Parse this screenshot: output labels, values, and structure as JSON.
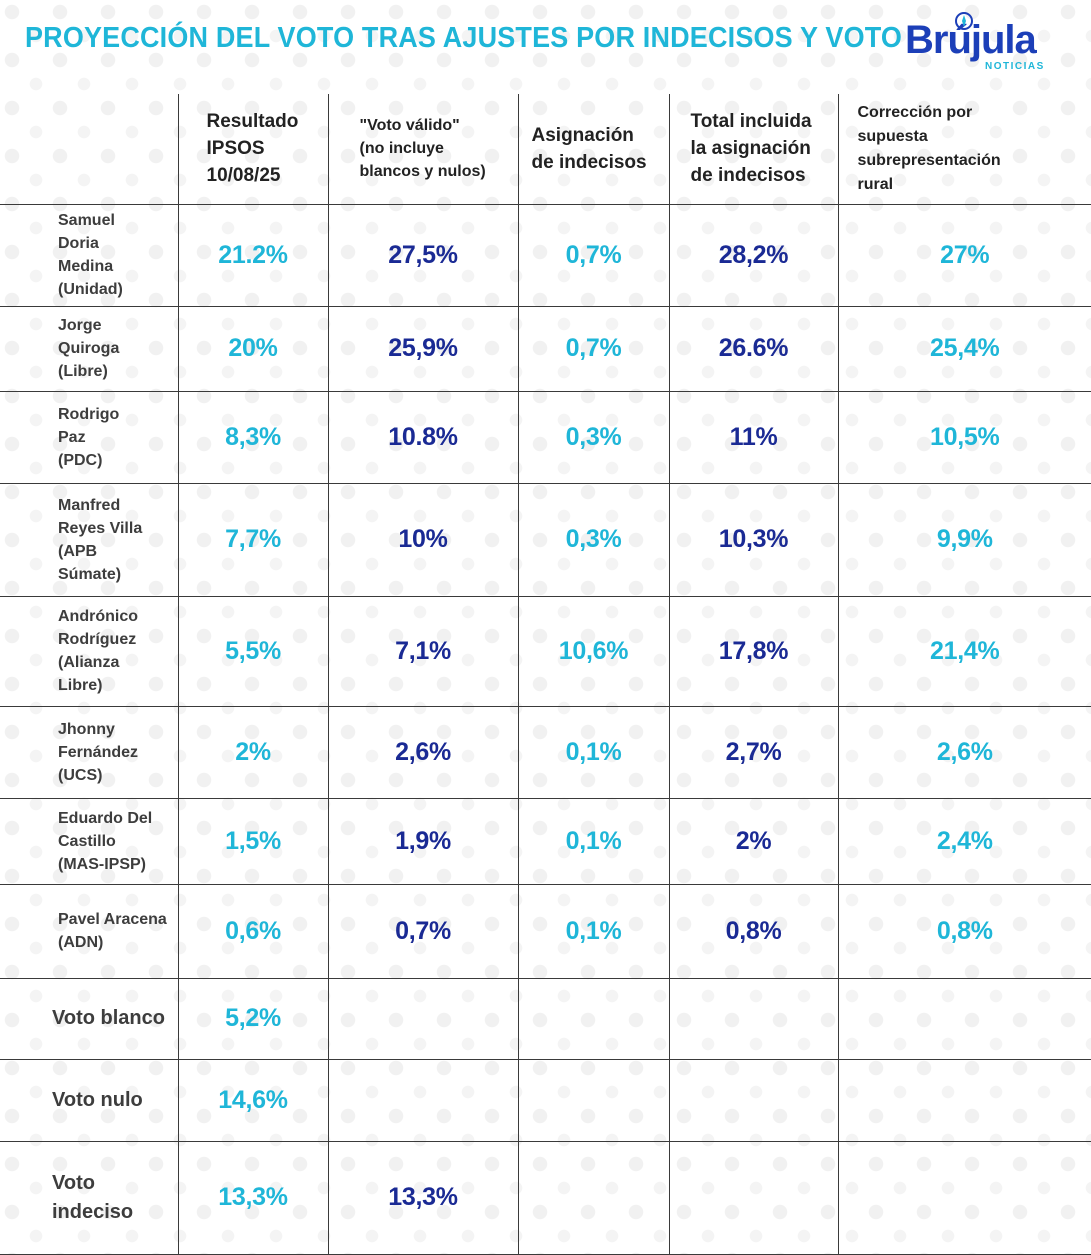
{
  "title": "PROYECCIÓN DEL VOTO TRAS AJUSTES POR INDECISOS Y VOTO",
  "logo": {
    "word": "Brújula",
    "sub": "NOTICIAS"
  },
  "colors": {
    "title": "#1fb6d8",
    "cyan_values": "#1fb6d8",
    "navy_values": "#1a2a94",
    "logo": "#1c3fb8"
  },
  "chart_data": {
    "type": "table",
    "columns": [
      "Resultado\nIPSOS\n10/08/25",
      "\"Voto válido\"\n(no incluye\nblancos y nulos)",
      "Asignación\nde indecisos",
      "Total incluida\nla asignación\nde indecisos",
      "Corrección por\nsupuesta\nsubrepresentación\nrural"
    ],
    "rows": [
      {
        "label": "Samuel\nDoria\nMedina\n(Unidad)",
        "values": [
          "21.2%",
          "27,5%",
          "0,7%",
          "28,2%",
          "27%"
        ]
      },
      {
        "label": "Jorge\nQuiroga\n(Libre)",
        "values": [
          "20%",
          "25,9%",
          "0,7%",
          "26.6%",
          "25,4%"
        ]
      },
      {
        "label": "Rodrigo\nPaz\n(PDC)",
        "values": [
          "8,3%",
          "10.8%",
          "0,3%",
          "11%",
          "10,5%"
        ]
      },
      {
        "label": "Manfred\nReyes Villa\n(APB\nSúmate)",
        "values": [
          "7,7%",
          "10%",
          "0,3%",
          "10,3%",
          "9,9%"
        ]
      },
      {
        "label": "Andrónico\nRodríguez\n(Alianza\nLibre)",
        "values": [
          "5,5%",
          "7,1%",
          "10,6%",
          "17,8%",
          "21,4%"
        ]
      },
      {
        "label": "Jhonny\nFernández\n(UCS)",
        "values": [
          "2%",
          "2,6%",
          "0,1%",
          "2,7%",
          "2,6%"
        ]
      },
      {
        "label": "Eduardo Del\nCastillo\n(MAS-IPSP)",
        "values": [
          "1,5%",
          "1,9%",
          "0,1%",
          "2%",
          "2,4%"
        ]
      },
      {
        "label": "Pavel Aracena\n(ADN)",
        "values": [
          "0,6%",
          "0,7%",
          "0,1%",
          "0,8%",
          "0,8%"
        ]
      },
      {
        "label": "Voto blanco",
        "values": [
          "5,2%",
          "",
          "",
          "",
          ""
        ]
      },
      {
        "label": "Voto nulo",
        "values": [
          "14,6%",
          "",
          "",
          "",
          ""
        ]
      },
      {
        "label": "Voto\nindeciso",
        "values": [
          "13,3%",
          "13,3%",
          "",
          "",
          ""
        ]
      }
    ]
  }
}
